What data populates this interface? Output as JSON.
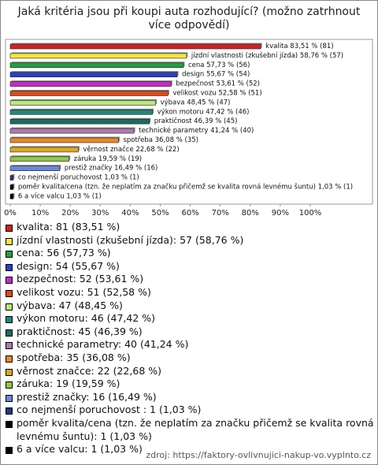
{
  "chart_data": {
    "type": "barh",
    "title": "Jaká kritéria jsou při koupi auta rozhodující? (možno zatrhnout více odpovědí)",
    "categories": [
      "kvalita",
      "jízdní vlastnosti (zkušební jízda)",
      "cena",
      "design",
      "bezpečnost",
      "velikost vozu",
      "výbava",
      "výkon motoru",
      "praktičnost",
      "technické parametry",
      "spotřeba",
      "věrnost značce",
      "záruka",
      "prestiž značky",
      "co nejmenší poruchovost",
      "poměr kvalita/cena (tzn. že neplatím za značku přičemž se kvalita rovná levnému šuntu)",
      "6 a více valcu"
    ],
    "values": [
      83.51,
      58.76,
      57.73,
      55.67,
      53.61,
      52.58,
      48.45,
      47.42,
      46.39,
      41.24,
      36.08,
      22.68,
      19.59,
      16.49,
      1.03,
      1.03,
      1.03
    ],
    "value_labels": [
      "kvalita 83,51 % (81)",
      "jízdní vlastnosti (zkušební jízda) 58,76 % (57)",
      "cena 57,73 % (56)",
      "design 55,67 % (54)",
      "bezpečnost 53,61 % (52)",
      "velikost vozu 52,58 % (51)",
      "výbava 48,45 % (47)",
      "výkon motoru 47,42 % (46)",
      "praktičnost 46,39 % (45)",
      "technické parametry 41,24 % (40)",
      "spotřeba 36,08 % (35)",
      "věrnost značce 22,68 % (22)",
      "záruka 19,59 % (19)",
      "prestiž značky 16,49 % (16)",
      "co nejmenší poruchovost  1,03 % (1)",
      "poměr kvalita/cena (tzn. že neplatím za značku přičemž se kvalita rovná levnému šuntu) 1,03 % (1)",
      "6 a více valcu 1,03 % (1)"
    ],
    "legend_labels": [
      "kvalita: 81 (83,51 %)",
      "jízdní vlastnosti (zkušební jízda): 57 (58,76 %)",
      "cena: 56 (57,73 %)",
      "design: 54 (55,67 %)",
      "bezpečnost: 52 (53,61 %)",
      "velikost vozu: 51 (52,58 %)",
      "výbava: 47 (48,45 %)",
      "výkon motoru: 46 (47,42 %)",
      "praktičnost: 45 (46,39 %)",
      "technické parametry: 40 (41,24 %)",
      "spotřeba: 35 (36,08 %)",
      "věrnost značce: 22 (22,68 %)",
      "záruka: 19 (19,59 %)",
      "prestiž značky: 16 (16,49 %)",
      "co nejmenší poruchovost : 1 (1,03 %)",
      "poměr kvalita/cena (tzn. že neplatím za značku přičemž se kvalita rovná levnému šuntu): 1 (1,03 %)",
      "6 a více valcu: 1 (1,03 %)"
    ],
    "colors": [
      "#d42020",
      "#f4e640",
      "#22a040",
      "#2840c8",
      "#c828c8",
      "#e04818",
      "#b8e878",
      "#208878",
      "#1c6a60",
      "#b078b0",
      "#e88828",
      "#e0a820",
      "#90c848",
      "#6888d8",
      "#203888",
      "#000000",
      "#000000"
    ],
    "xlim": [
      0,
      100
    ],
    "xticks": [
      {
        "value": 0,
        "label": "0%"
      },
      {
        "value": 10,
        "label": "10%"
      },
      {
        "value": 20,
        "label": "20%"
      },
      {
        "value": 30,
        "label": "30%"
      },
      {
        "value": 40,
        "label": "40%"
      },
      {
        "value": 50,
        "label": "50%"
      },
      {
        "value": 60,
        "label": "60%"
      },
      {
        "value": 70,
        "label": "70%"
      },
      {
        "value": 80,
        "label": "80%"
      },
      {
        "value": 90,
        "label": "90%"
      },
      {
        "value": 100,
        "label": "100%"
      }
    ],
    "source": "zdroj: https://faktory-ovlivnujici-nakup-vo.vyplnto.cz"
  }
}
